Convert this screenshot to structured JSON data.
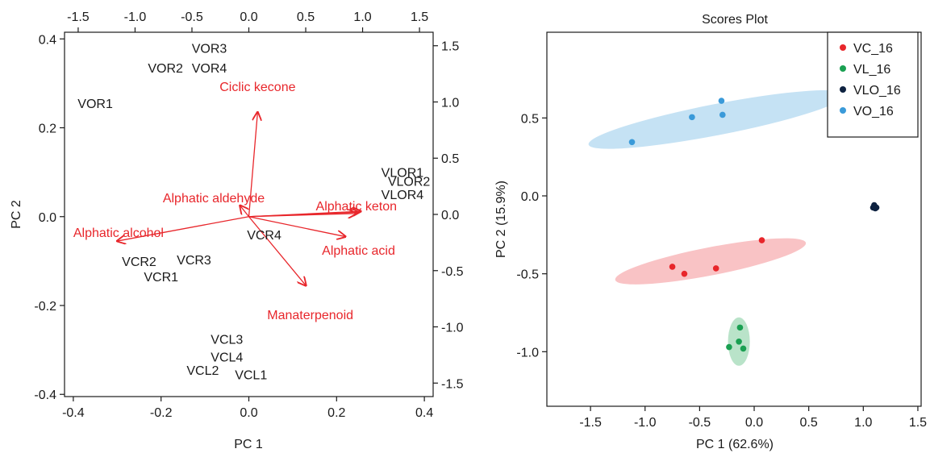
{
  "colors": {
    "axis": "#1a1a1a",
    "loading": "#e8262b"
  },
  "chart_data": [
    {
      "type": "scatter",
      "subtype": "biplot",
      "title": "",
      "xlabel": "PC 1",
      "ylabel": "PC 2",
      "xlim": [
        -0.42,
        0.42
      ],
      "ylim": [
        -0.405,
        0.415
      ],
      "xticks": [
        "-0.4",
        "-0.2",
        "0.0",
        "0.2",
        "0.4"
      ],
      "xtick_values": [
        -0.4,
        -0.2,
        0,
        0.2,
        0.4
      ],
      "yticks": [
        "-0.4",
        "-0.2",
        "0.0",
        "0.2",
        "0.4"
      ],
      "ytick_values": [
        -0.4,
        -0.2,
        0,
        0.2,
        0.4
      ],
      "top_axis": {
        "lim": [
          -1.62,
          1.62
        ],
        "ticks": [
          "-1.5",
          "-1.0",
          "-0.5",
          "0.0",
          "0.5",
          "1.0",
          "1.5"
        ],
        "tick_values": [
          -1.5,
          -1.0,
          -0.5,
          0,
          0.5,
          1.0,
          1.5
        ]
      },
      "right_axis": {
        "lim": [
          -1.62,
          1.62
        ],
        "ticks": [
          "1.5",
          "1.0",
          "0.5",
          "0.0",
          "-0.5",
          "-1.0",
          "-1.5"
        ],
        "tick_values": [
          1.5,
          1.0,
          0.5,
          0,
          -0.5,
          -1.0,
          -1.5
        ]
      },
      "samples": [
        {
          "label": "VOR3",
          "x": -0.09,
          "y": 0.38
        },
        {
          "label": "VOR2",
          "x": -0.19,
          "y": 0.335
        },
        {
          "label": "VOR4",
          "x": -0.09,
          "y": 0.335
        },
        {
          "label": "VOR1",
          "x": -0.35,
          "y": 0.255
        },
        {
          "label": "VLOR1",
          "x": 0.35,
          "y": 0.1
        },
        {
          "label": "VLOR2",
          "x": 0.365,
          "y": 0.08
        },
        {
          "label": "VLOR4",
          "x": 0.35,
          "y": 0.05
        },
        {
          "label": "VCR4",
          "x": 0.035,
          "y": -0.04
        },
        {
          "label": "VCR2",
          "x": -0.25,
          "y": -0.1
        },
        {
          "label": "VCR3",
          "x": -0.125,
          "y": -0.097
        },
        {
          "label": "VCR1",
          "x": -0.2,
          "y": -0.135
        },
        {
          "label": "VCL3",
          "x": -0.05,
          "y": -0.275
        },
        {
          "label": "VCL4",
          "x": -0.05,
          "y": -0.315
        },
        {
          "label": "VCL2",
          "x": -0.105,
          "y": -0.345
        },
        {
          "label": "VCL1",
          "x": 0.005,
          "y": -0.355
        }
      ],
      "loadings": [
        {
          "label": "Ciclic kecone",
          "x": 0.02,
          "y": 0.235,
          "lx": 0.02,
          "ly": 0.293
        },
        {
          "label": "Alphatic aldehyde",
          "x": -0.02,
          "y": 0.025,
          "lx": -0.08,
          "ly": 0.043
        },
        {
          "label": "Alphatic keton",
          "x": 0.255,
          "y": 0.012,
          "lx": 0.245,
          "ly": 0.025
        },
        {
          "label": "Alphatic alcohol",
          "x": -0.3,
          "y": -0.055,
          "lx": -0.297,
          "ly": -0.035
        },
        {
          "label": "Alphatic acid",
          "x": 0.22,
          "y": -0.045,
          "lx": 0.25,
          "ly": -0.075
        },
        {
          "label": "Manaterpenoid",
          "x": 0.13,
          "y": -0.155,
          "lx": 0.14,
          "ly": -0.22
        }
      ],
      "arrow_origin": {
        "x": 0.0,
        "y": 0.0
      },
      "extra_arrow_tips": [
        {
          "x": 0.25,
          "y": 0.01
        },
        {
          "x": 0.245,
          "y": 0.007
        }
      ]
    },
    {
      "type": "scatter",
      "title": "Scores Plot",
      "xlabel": "PC 1 (62.6%)",
      "ylabel": "PC 2 (15.9%)",
      "xlim": [
        -1.9,
        1.53
      ],
      "ylim": [
        -1.35,
        1.05
      ],
      "xticks": [
        "-1.5",
        "-1.0",
        "-0.5",
        "0.0",
        "0.5",
        "1.0",
        "1.5"
      ],
      "xtick_values": [
        -1.5,
        -1.0,
        -0.5,
        0,
        0.5,
        1.0,
        1.5
      ],
      "yticks": [
        "-1.0",
        "-0.5",
        "0.0",
        "0.5"
      ],
      "ytick_values": [
        -1.0,
        -0.5,
        0,
        0.5
      ],
      "legend_position": "top-right",
      "series": [
        {
          "name": "VC_16",
          "color": "#e8262b",
          "fill": "#f8b4b6",
          "points": [
            [
              0.07,
              -0.285
            ],
            [
              -0.75,
              -0.455
            ],
            [
              -0.64,
              -0.5
            ],
            [
              -0.35,
              -0.465
            ]
          ],
          "ellipse": {
            "cx": -0.4,
            "cy": -0.42,
            "rx": 0.89,
            "ry": 0.09,
            "angle_deg": 11
          }
        },
        {
          "name": "VL_16",
          "color": "#1aa052",
          "fill": "#a8dcbc",
          "points": [
            [
              -0.13,
              -0.845
            ],
            [
              -0.14,
              -0.935
            ],
            [
              -0.23,
              -0.97
            ],
            [
              -0.1,
              -0.98
            ]
          ],
          "ellipse": {
            "cx": -0.14,
            "cy": -0.935,
            "rx": 0.1,
            "ry": 0.155,
            "angle_deg": 0
          }
        },
        {
          "name": "VLO_16",
          "color": "#0e2240",
          "fill": "#0e2240",
          "points": [
            [
              1.1,
              -0.06
            ],
            [
              1.11,
              -0.08
            ],
            [
              1.12,
              -0.075
            ],
            [
              1.09,
              -0.075
            ]
          ],
          "ellipse": {
            "cx": 1.105,
            "cy": -0.072,
            "rx": 0.025,
            "ry": 0.022,
            "angle_deg": 0
          }
        },
        {
          "name": "VO_16",
          "color": "#3a9ad9",
          "fill": "#b7dbf1",
          "points": [
            [
              -0.3,
              0.61
            ],
            [
              -0.29,
              0.52
            ],
            [
              -0.57,
              0.505
            ],
            [
              -1.12,
              0.345
            ]
          ],
          "ellipse": {
            "cx": -0.34,
            "cy": 0.49,
            "rx": 1.2,
            "ry": 0.1,
            "angle_deg": 11
          }
        }
      ]
    }
  ]
}
